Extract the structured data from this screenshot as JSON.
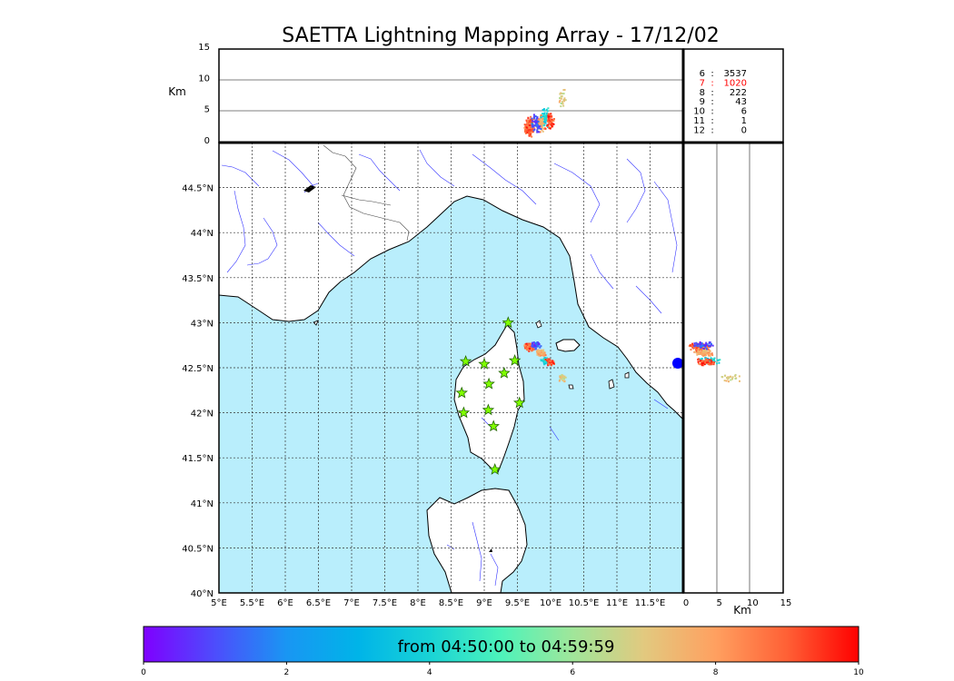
{
  "figure": {
    "title": "SAETTA Lightning Mapping Array - 17/12/02",
    "top_axis_label": "Km",
    "right_axis_label": "Km",
    "colorbar_label": "from 04:50:00 to 04:59:59",
    "colors": {
      "sea": "#b9eefc",
      "land": "#ffffff",
      "rivers": "#3333ff",
      "stars": "#80ff00",
      "highlight": "#ff0000"
    }
  },
  "chart_data": {
    "type": "scatter",
    "map": {
      "lon_range": [
        5,
        12
      ],
      "lat_range": [
        40,
        45
      ],
      "lon_ticks": [
        5,
        5.5,
        6,
        6.5,
        7,
        7.5,
        8,
        8.5,
        9,
        9.5,
        10,
        10.5,
        11,
        11.5
      ],
      "lon_tick_labels": [
        "5°E",
        "5.5°E",
        "6°E",
        "6.5°E",
        "7°E",
        "7.5°E",
        "8°E",
        "8.5°E",
        "9°E",
        "9.5°E",
        "10°E",
        "10.5°E",
        "11°E",
        "11.5°E"
      ],
      "lat_ticks": [
        40,
        40.5,
        41,
        41.5,
        42,
        42.5,
        43,
        43.5,
        44,
        44.5
      ],
      "lat_tick_labels": [
        "40°N",
        "40.5°N",
        "41°N",
        "41.5°N",
        "42°N",
        "42.5°N",
        "43°N",
        "43.5°N",
        "44°N",
        "44.5°N"
      ],
      "grid": true
    },
    "altitude_panel": {
      "y_ticks": [
        0,
        5,
        10,
        15
      ],
      "y_range": [
        0,
        15
      ]
    },
    "side_panel": {
      "x_ticks": [
        0,
        5,
        10,
        15
      ],
      "x_range": [
        0,
        15
      ]
    },
    "station_counts": [
      {
        "stations": "6",
        "count": "3537",
        "highlight": false
      },
      {
        "stations": "7",
        "count": "1020",
        "highlight": true
      },
      {
        "stations": "8",
        "count": "222",
        "highlight": false
      },
      {
        "stations": "9",
        "count": "43",
        "highlight": false
      },
      {
        "stations": "10",
        "count": "6",
        "highlight": false
      },
      {
        "stations": "11",
        "count": "1",
        "highlight": false
      },
      {
        "stations": "12",
        "count": "0",
        "highlight": false
      }
    ],
    "stations": [
      {
        "lon": 9.36,
        "lat": 43.0
      },
      {
        "lon": 8.72,
        "lat": 42.57
      },
      {
        "lon": 9.0,
        "lat": 42.54
      },
      {
        "lon": 9.46,
        "lat": 42.58
      },
      {
        "lon": 9.3,
        "lat": 42.44
      },
      {
        "lon": 9.07,
        "lat": 42.32
      },
      {
        "lon": 8.66,
        "lat": 42.22
      },
      {
        "lon": 9.53,
        "lat": 42.11
      },
      {
        "lon": 8.69,
        "lat": 42.0
      },
      {
        "lon": 9.06,
        "lat": 42.03
      },
      {
        "lon": 9.14,
        "lat": 41.85
      },
      {
        "lon": 9.16,
        "lat": 41.37
      }
    ],
    "clusters": [
      {
        "lon": 9.68,
        "lat": 42.73,
        "alt": 2.5,
        "time": 8.8,
        "count": 220
      },
      {
        "lon": 9.85,
        "lat": 42.66,
        "alt": 3.2,
        "time": 7.8,
        "count": 80
      },
      {
        "lon": 9.78,
        "lat": 42.75,
        "alt": 3.0,
        "time": 1.2,
        "count": 55
      },
      {
        "lon": 9.92,
        "lat": 42.58,
        "alt": 4.0,
        "time": 4.0,
        "count": 55
      },
      {
        "lon": 10.0,
        "lat": 42.56,
        "alt": 3.5,
        "time": 9.2,
        "count": 60
      },
      {
        "lon": 10.18,
        "lat": 42.38,
        "alt": 7.0,
        "time": 7.0,
        "count": 25
      }
    ],
    "colorbar": {
      "range": [
        0,
        10
      ],
      "ticks": [
        0,
        2,
        4,
        6,
        8,
        10
      ]
    }
  }
}
